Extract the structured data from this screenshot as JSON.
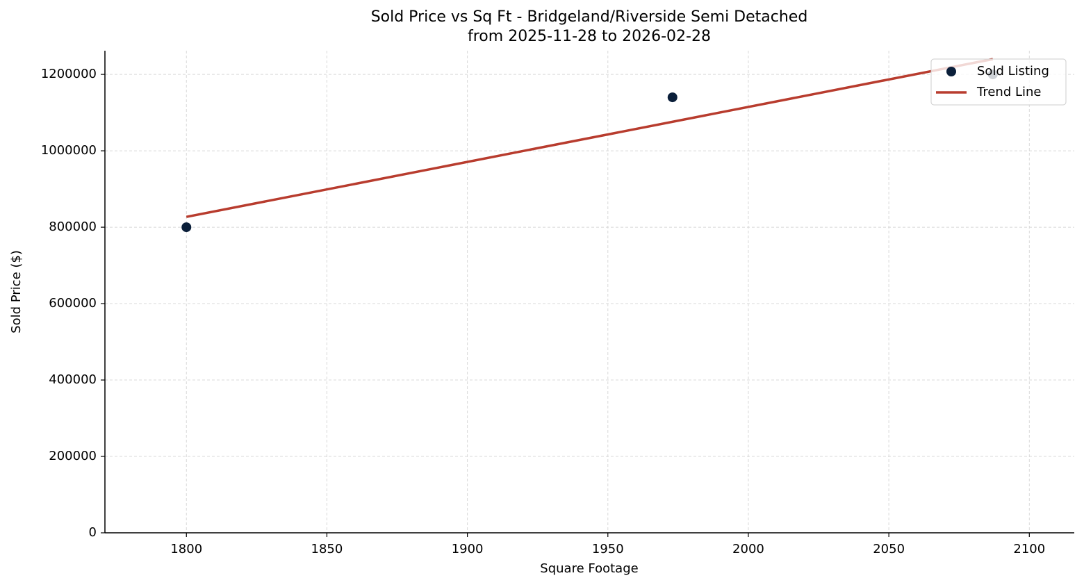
{
  "chart_data": {
    "type": "scatter",
    "title": "Sold Price vs Sq Ft - Bridgeland/Riverside Semi Detached",
    "subtitle": "from 2025-11-28 to 2026-02-28",
    "x_label": "Square Footage",
    "y_label": "Sold Price ($)",
    "series": [
      {
        "name": "Sold Listing",
        "type": "scatter",
        "color": "#0b1f3a",
        "x": [
          1800,
          1973,
          2087
        ],
        "values": [
          800000,
          1140000,
          1200000
        ]
      },
      {
        "name": "Trend Line",
        "type": "line",
        "color": "#b83c2e",
        "x": [
          1800,
          2087
        ],
        "values": [
          827000,
          1240000
        ]
      }
    ],
    "xlim": [
      1771,
      2116
    ],
    "ylim": [
      0,
      1262000
    ],
    "xticks": [
      1800,
      1850,
      1900,
      1950,
      2000,
      2050,
      2100
    ],
    "yticks": [
      0,
      200000,
      400000,
      600000,
      800000,
      1000000,
      1200000
    ],
    "grid": true,
    "legend": "upper right"
  }
}
